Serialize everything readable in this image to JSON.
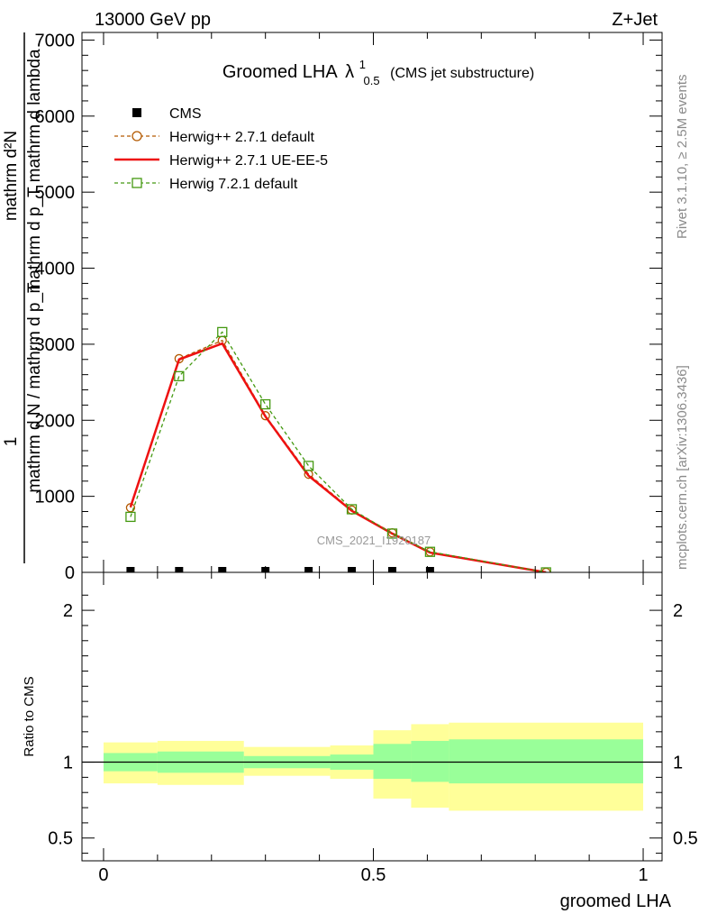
{
  "header": {
    "energy_label": "13000 GeV pp",
    "process_label": "Z+Jet"
  },
  "side_labels": {
    "rivet": "Rivet 3.1.10, ≥ 2.5M events",
    "mcplots": "mcplots.cern.ch [arXiv:1306.3436]"
  },
  "watermark": "CMS_2021_I1920187",
  "chart_data": [
    {
      "type": "line",
      "title": "Groomed LHA",
      "title_symbol": "λ",
      "title_sup": "1",
      "title_sub": "0.5",
      "subtitle": "(CMS jet substructure)",
      "ylabel_numerator": "mathrm d²N",
      "ylabel_denominator": "mathrm d p_T mathrm d lambda",
      "ylabel_prefix_num": "1",
      "ylabel_prefix_den": "mathrm d N / mathrm d p_T",
      "xlim": [
        -0.04,
        1.035
      ],
      "ylim": [
        0,
        7100
      ],
      "yticks": [
        0,
        1000,
        2000,
        3000,
        4000,
        5000,
        6000,
        7000
      ],
      "ytick_labels": [
        "0",
        "1000",
        "2000",
        "3000",
        "4000",
        "5000",
        "6000",
        "7000"
      ],
      "legend_position": "top-left",
      "series": [
        {
          "name": "CMS",
          "color": "#000000",
          "marker": "filled-square",
          "x": [
            0.05,
            0.14,
            0.22,
            0.3,
            0.38,
            0.46,
            0.535,
            0.605
          ],
          "y": [
            0,
            0,
            0,
            0,
            0,
            0,
            0,
            0
          ]
        },
        {
          "name": "Herwig++ 2.7.1 default",
          "color": "#b35900",
          "marker": "open-circle",
          "dash": true,
          "x": [
            0.05,
            0.14,
            0.22,
            0.3,
            0.38,
            0.46,
            0.535,
            0.605,
            0.82
          ],
          "y": [
            850,
            2810,
            3050,
            2060,
            1290,
            820,
            520,
            270,
            0
          ]
        },
        {
          "name": "Herwig++ 2.7.1 UE-EE-5",
          "color": "#ee1111",
          "marker": "none",
          "dash": false,
          "x": [
            0.05,
            0.14,
            0.22,
            0.3,
            0.38,
            0.46,
            0.535,
            0.605,
            0.82
          ],
          "y": [
            860,
            2800,
            3010,
            2050,
            1270,
            810,
            510,
            260,
            0
          ]
        },
        {
          "name": "Herwig 7.2.1 default",
          "color": "#449911",
          "marker": "open-square",
          "dash": true,
          "x": [
            0.05,
            0.14,
            0.22,
            0.3,
            0.38,
            0.46,
            0.535,
            0.605,
            0.82
          ],
          "y": [
            730,
            2580,
            3160,
            2210,
            1400,
            830,
            510,
            270,
            0
          ]
        }
      ]
    },
    {
      "type": "area",
      "ylabel": "Ratio to CMS",
      "xlabel": "groomed LHA",
      "xlim": [
        -0.04,
        1.035
      ],
      "ylim": [
        0.35,
        2.25
      ],
      "xticks": [
        0,
        0.5,
        1
      ],
      "xtick_labels": [
        "0",
        "0.5",
        "1"
      ],
      "yticks": [
        0.5,
        1,
        2
      ],
      "ytick_labels": [
        "0.5",
        "1",
        "2"
      ],
      "reference_line": 1,
      "bands": [
        {
          "name": "1-sigma",
          "color": "#99ff99",
          "edges": [
            0,
            0.1,
            0.26,
            0.42,
            0.5,
            0.57,
            0.64,
            1.0
          ],
          "low": [
            0.94,
            0.93,
            0.96,
            0.95,
            0.89,
            0.87,
            0.86
          ],
          "high": [
            1.06,
            1.07,
            1.04,
            1.05,
            1.12,
            1.14,
            1.15
          ]
        },
        {
          "name": "2-sigma",
          "color": "#ffff99",
          "edges": [
            0,
            0.1,
            0.26,
            0.42,
            0.5,
            0.57,
            0.64,
            1.0
          ],
          "low": [
            0.86,
            0.85,
            0.91,
            0.89,
            0.76,
            0.7,
            0.68
          ],
          "high": [
            1.13,
            1.14,
            1.1,
            1.11,
            1.21,
            1.25,
            1.26
          ]
        }
      ]
    }
  ]
}
